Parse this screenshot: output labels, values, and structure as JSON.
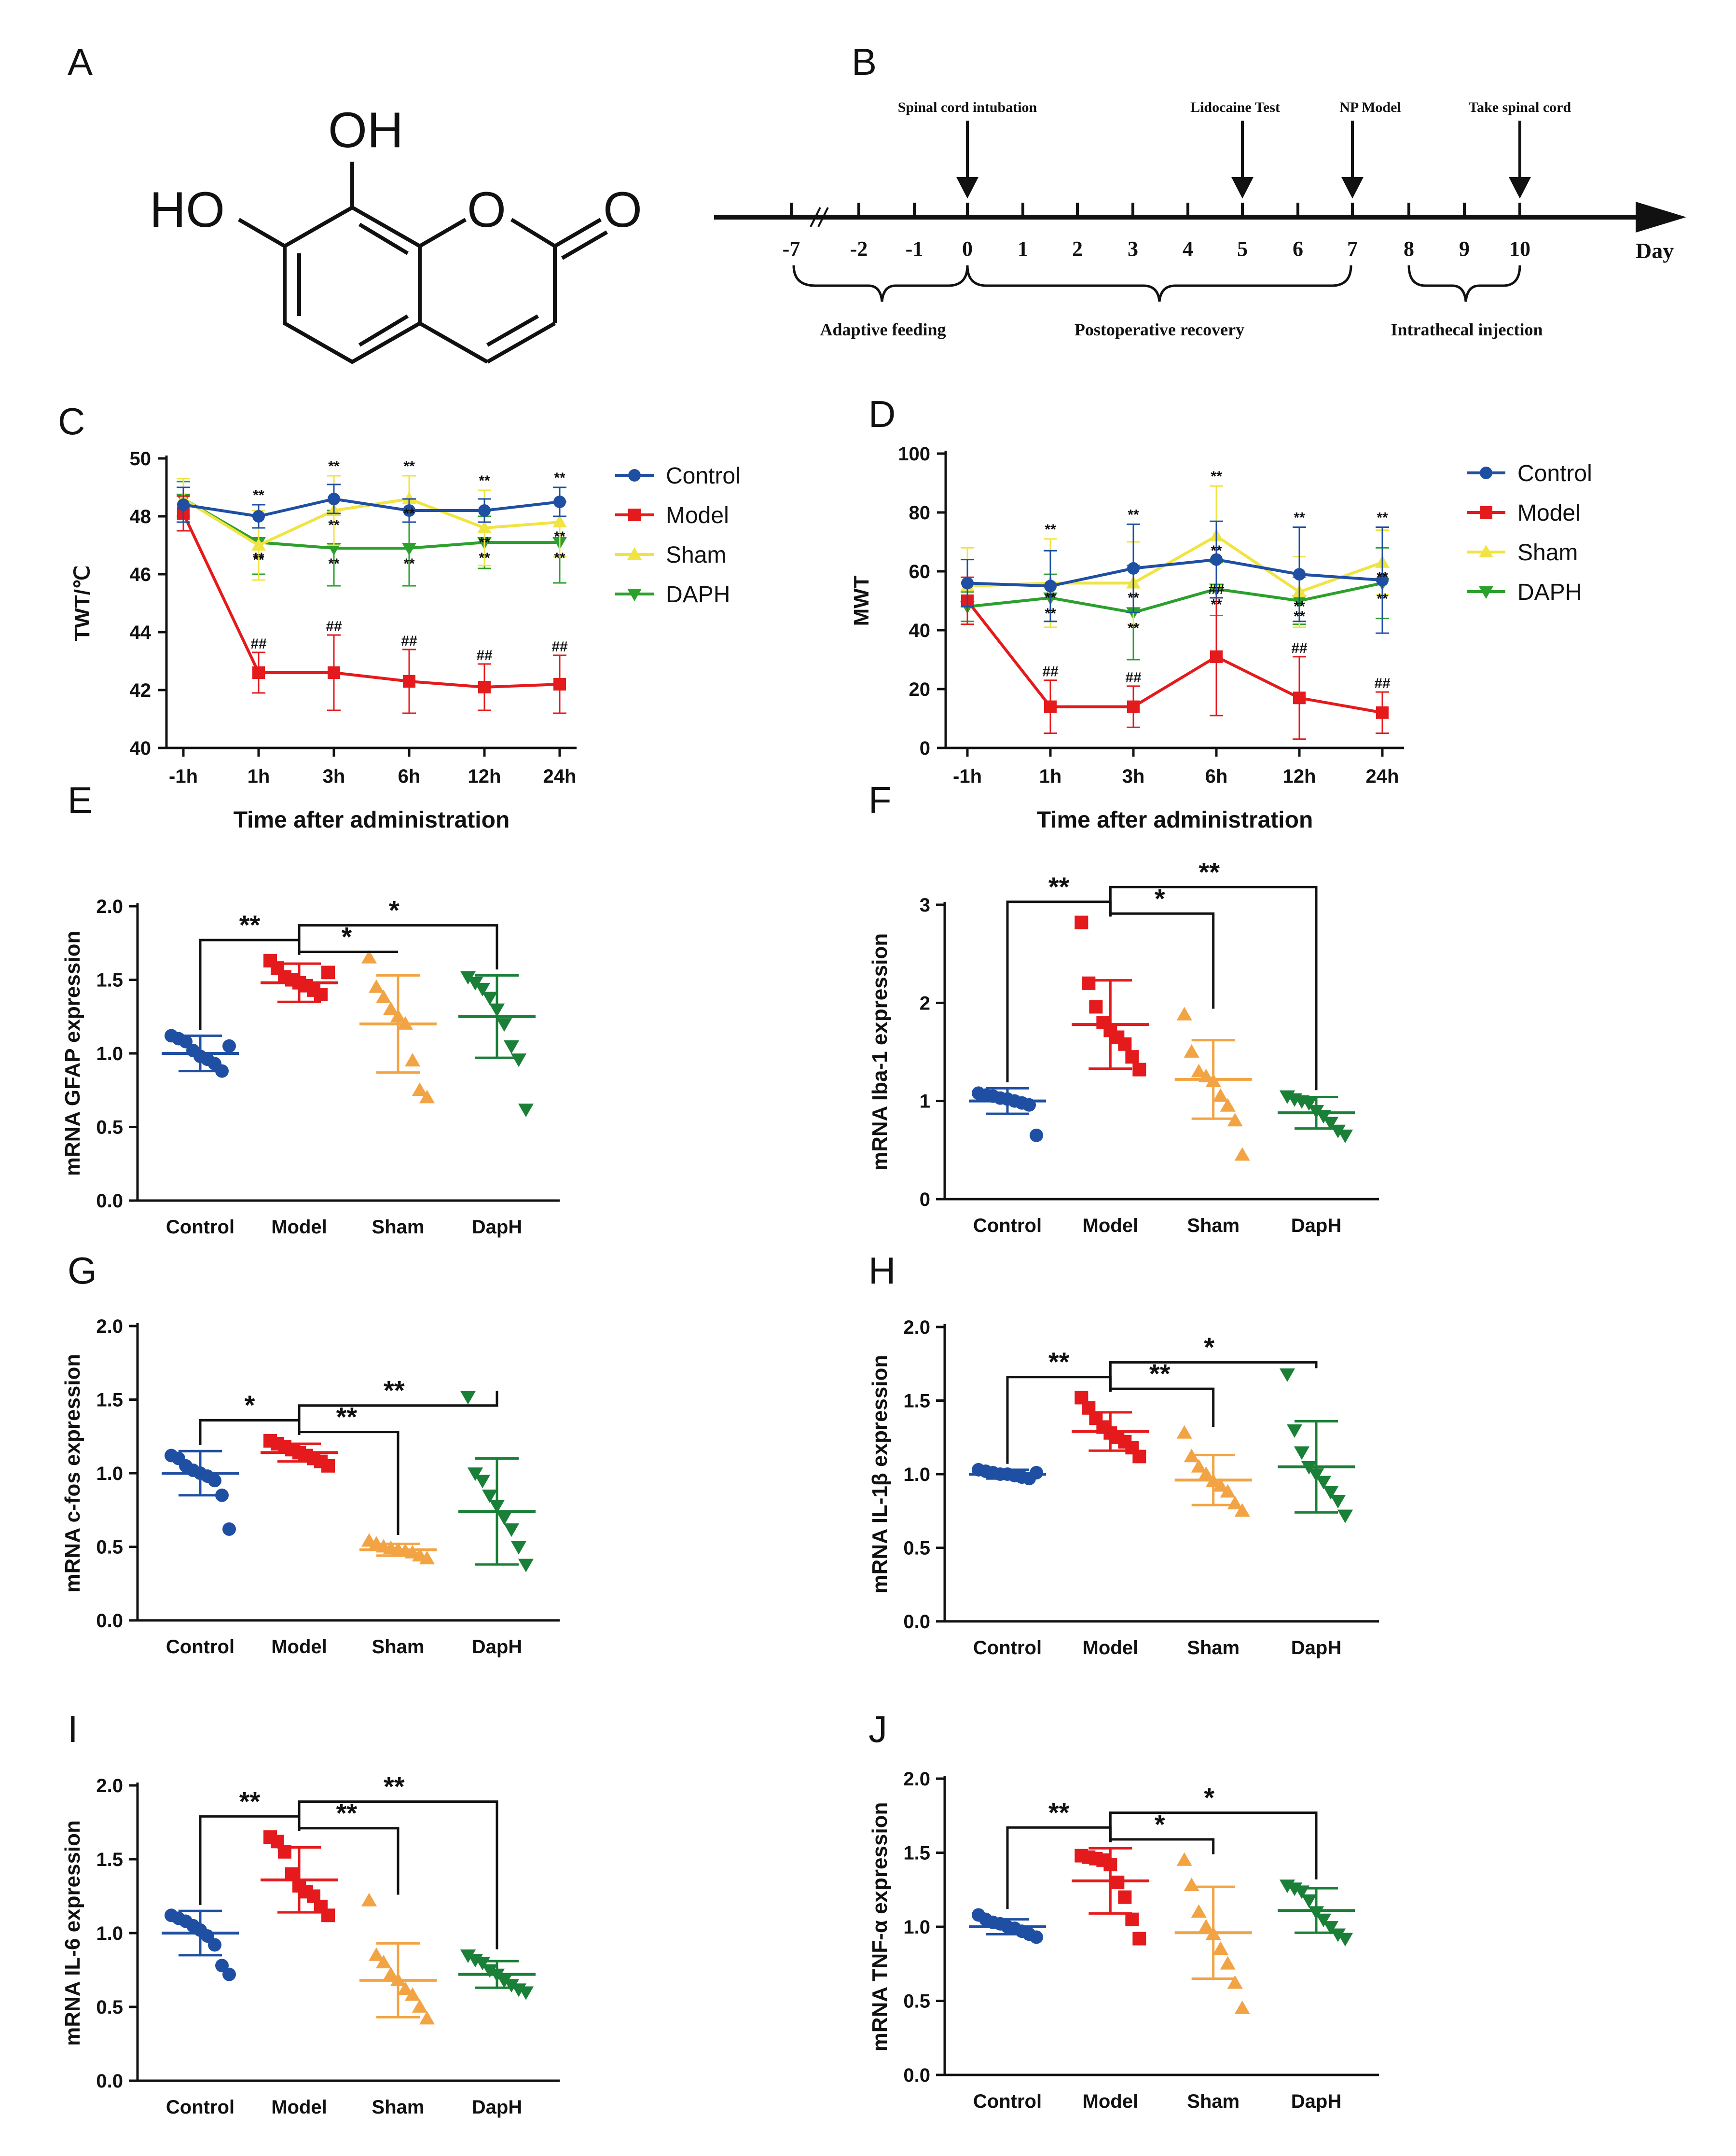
{
  "panel_letters": [
    "A",
    "B",
    "C",
    "D",
    "E",
    "F",
    "G",
    "H",
    "I",
    "J"
  ],
  "colors": {
    "Control": "#1f4fa3",
    "Model": "#e41a1c",
    "Sham": "#f2a444",
    "DAPH": "#1a7f37",
    "ShamLine": "#f0e442",
    "DaphLine": "#2ca02c"
  },
  "molecule": {
    "labels": [
      "OH",
      "HO",
      "O",
      "O"
    ]
  },
  "timeline": {
    "axis_label": "Day",
    "ticks": [
      "-7",
      "-2",
      "-1",
      "0",
      "1",
      "2",
      "3",
      "4",
      "5",
      "6",
      "7",
      "8",
      "9",
      "10"
    ],
    "events": [
      "Spinal cord intubation",
      "Lidocaine Test",
      "NP Model",
      "Take spinal cord"
    ],
    "periods": [
      "Adaptive feeding",
      "Postoperative recovery",
      "Intrathecal injection"
    ]
  },
  "chart_data": [
    {
      "id": "C",
      "type": "line",
      "ylabel": "TWT/℃",
      "xlabel": "Time after administration",
      "categories": [
        "-1h",
        "1h",
        "3h",
        "6h",
        "12h",
        "24h"
      ],
      "ylim": [
        40,
        50
      ],
      "yticks": [
        "40",
        "42",
        "44",
        "46",
        "48",
        "50"
      ],
      "series": [
        {
          "name": "Control",
          "values": [
            48.4,
            48.0,
            48.6,
            48.2,
            48.2,
            48.5
          ],
          "err": [
            0.6,
            0.4,
            0.5,
            0.4,
            0.4,
            0.5
          ]
        },
        {
          "name": "Model",
          "values": [
            48.1,
            42.6,
            42.6,
            42.3,
            42.1,
            42.2
          ],
          "err": [
            0.6,
            0.7,
            1.3,
            1.1,
            0.8,
            1.0
          ]
        },
        {
          "name": "Sham",
          "values": [
            48.6,
            47.0,
            48.2,
            48.6,
            47.6,
            47.8
          ],
          "err": [
            0.7,
            1.2,
            1.2,
            0.8,
            1.3,
            1.2
          ]
        },
        {
          "name": "DAPH",
          "values": [
            48.6,
            47.1,
            46.9,
            46.9,
            47.1,
            47.1
          ],
          "err": [
            0.6,
            1.1,
            1.3,
            1.3,
            0.9,
            1.4
          ]
        }
      ],
      "annotations": {
        "top": [
          "**",
          "**",
          "**",
          "**",
          "**"
        ],
        "mid": [
          "**",
          "**",
          "**",
          "**",
          "**"
        ],
        "low": [
          "**",
          "**",
          "**",
          "**",
          "**"
        ],
        "model": [
          "##",
          "##",
          "##",
          "##",
          "##"
        ]
      }
    },
    {
      "id": "D",
      "type": "line",
      "ylabel": "MWT",
      "xlabel": "Time after administration",
      "categories": [
        "-1h",
        "1h",
        "3h",
        "6h",
        "12h",
        "24h"
      ],
      "ylim": [
        0,
        100
      ],
      "yticks": [
        "0",
        "20",
        "40",
        "60",
        "80",
        "100"
      ],
      "series": [
        {
          "name": "Control",
          "values": [
            56,
            55,
            61,
            64,
            59,
            57
          ],
          "err": [
            8,
            12,
            15,
            13,
            16,
            18
          ]
        },
        {
          "name": "Model",
          "values": [
            50,
            14,
            14,
            31,
            17,
            12
          ],
          "err": [
            8,
            9,
            7,
            20,
            14,
            7
          ]
        },
        {
          "name": "Sham",
          "values": [
            55,
            56,
            56,
            72,
            53,
            63
          ],
          "err": [
            13,
            15,
            14,
            17,
            12,
            11
          ]
        },
        {
          "name": "DAPH",
          "values": [
            48,
            51,
            46,
            54,
            50,
            56
          ],
          "err": [
            5,
            8,
            16,
            9,
            8,
            12
          ]
        }
      ],
      "annotations": {
        "top": [
          "**",
          "**",
          "**",
          "**",
          "**"
        ],
        "mid": [
          "**",
          "**",
          "**",
          "**",
          "**"
        ],
        "low": [
          "**",
          "**",
          "**",
          "**",
          "**"
        ],
        "model": [
          "##",
          "##",
          "##",
          "##",
          "##"
        ]
      }
    },
    {
      "id": "E",
      "type": "scatter",
      "ylabel": "mRNA GFAP expression",
      "categories": [
        "Control",
        "Model",
        "Sham",
        "DapH"
      ],
      "ylim": [
        0,
        2.0
      ],
      "yticks": [
        "0.0",
        "0.5",
        "1.0",
        "1.5",
        "2.0"
      ],
      "groups": [
        {
          "values": [
            1.12,
            1.1,
            1.08,
            1.02,
            0.98,
            0.96,
            0.93,
            0.88,
            1.05
          ],
          "mean": 1.0,
          "sd": 0.12
        },
        {
          "values": [
            1.63,
            1.58,
            1.52,
            1.5,
            1.48,
            1.46,
            1.43,
            1.4,
            1.55
          ],
          "mean": 1.48,
          "sd": 0.13
        },
        {
          "values": [
            1.65,
            1.45,
            1.38,
            1.3,
            1.25,
            1.2,
            0.95,
            0.75,
            0.7
          ],
          "mean": 1.2,
          "sd": 0.33
        },
        {
          "values": [
            1.52,
            1.48,
            1.44,
            1.38,
            1.3,
            1.2,
            1.05,
            0.96,
            0.62
          ],
          "mean": 1.25,
          "sd": 0.28
        }
      ],
      "brackets": [
        {
          "from": 0,
          "to": 1,
          "label": "**"
        },
        {
          "from": 1,
          "to": 2,
          "label": "*"
        },
        {
          "from": 1,
          "to": 3,
          "label": "*"
        }
      ]
    },
    {
      "id": "F",
      "type": "scatter",
      "ylabel": "mRNA Iba-1 expression",
      "categories": [
        "Control",
        "Model",
        "Sham",
        "DapH"
      ],
      "ylim": [
        0,
        3
      ],
      "yticks": [
        "0",
        "1",
        "2",
        "3"
      ],
      "groups": [
        {
          "values": [
            1.08,
            1.06,
            1.05,
            1.03,
            1.02,
            1.0,
            0.98,
            0.96,
            0.65
          ],
          "mean": 1.0,
          "sd": 0.13
        },
        {
          "values": [
            2.82,
            2.2,
            1.96,
            1.8,
            1.72,
            1.65,
            1.58,
            1.45,
            1.32
          ],
          "mean": 1.78,
          "sd": 0.45
        },
        {
          "values": [
            1.88,
            1.5,
            1.3,
            1.25,
            1.2,
            1.05,
            0.95,
            0.8,
            0.45
          ],
          "mean": 1.22,
          "sd": 0.4
        },
        {
          "values": [
            1.05,
            1.02,
            1.0,
            0.98,
            0.9,
            0.85,
            0.78,
            0.7,
            0.65
          ],
          "mean": 0.88,
          "sd": 0.16
        }
      ],
      "brackets": [
        {
          "from": 0,
          "to": 1,
          "label": "**"
        },
        {
          "from": 1,
          "to": 2,
          "label": "*"
        },
        {
          "from": 1,
          "to": 3,
          "label": "**"
        }
      ]
    },
    {
      "id": "G",
      "type": "scatter",
      "ylabel": "mRNA c-fos expression",
      "categories": [
        "Control",
        "Model",
        "Sham",
        "DapH"
      ],
      "ylim": [
        0,
        2.0
      ],
      "yticks": [
        "0.0",
        "0.5",
        "1.0",
        "1.5",
        "2.0"
      ],
      "groups": [
        {
          "values": [
            1.12,
            1.1,
            1.05,
            1.02,
            1.0,
            0.98,
            0.95,
            0.85,
            0.62
          ],
          "mean": 1.0,
          "sd": 0.15
        },
        {
          "values": [
            1.22,
            1.2,
            1.18,
            1.16,
            1.14,
            1.12,
            1.1,
            1.08,
            1.05
          ],
          "mean": 1.14,
          "sd": 0.06
        },
        {
          "values": [
            0.54,
            0.52,
            0.5,
            0.49,
            0.48,
            0.47,
            0.46,
            0.44,
            0.42
          ],
          "mean": 0.48,
          "sd": 0.04
        },
        {
          "values": [
            1.52,
            1.0,
            0.95,
            0.85,
            0.78,
            0.7,
            0.62,
            0.5,
            0.38
          ],
          "mean": 0.74,
          "sd": 0.36
        }
      ],
      "brackets": [
        {
          "from": 0,
          "to": 1,
          "label": "*"
        },
        {
          "from": 1,
          "to": 2,
          "label": "**"
        },
        {
          "from": 1,
          "to": 3,
          "label": "**"
        }
      ]
    },
    {
      "id": "H",
      "type": "scatter",
      "ylabel": "mRNA IL-1β expression",
      "categories": [
        "Control",
        "Model",
        "Sham",
        "DapH"
      ],
      "ylim": [
        0,
        2.0
      ],
      "yticks": [
        "0.0",
        "0.5",
        "1.0",
        "1.5",
        "2.0"
      ],
      "groups": [
        {
          "values": [
            1.03,
            1.02,
            1.01,
            1.0,
            1.0,
            0.99,
            0.98,
            0.97,
            1.01
          ],
          "mean": 1.0,
          "sd": 0.03
        },
        {
          "values": [
            1.52,
            1.45,
            1.38,
            1.32,
            1.28,
            1.25,
            1.22,
            1.18,
            1.12
          ],
          "mean": 1.29,
          "sd": 0.13
        },
        {
          "values": [
            1.28,
            1.12,
            1.05,
            1.0,
            0.95,
            0.92,
            0.88,
            0.8,
            0.75
          ],
          "mean": 0.96,
          "sd": 0.17
        },
        {
          "values": [
            1.68,
            1.3,
            1.15,
            1.05,
            1.0,
            0.95,
            0.88,
            0.82,
            0.72
          ],
          "mean": 1.05,
          "sd": 0.31
        }
      ],
      "brackets": [
        {
          "from": 0,
          "to": 1,
          "label": "**"
        },
        {
          "from": 1,
          "to": 2,
          "label": "**"
        },
        {
          "from": 1,
          "to": 3,
          "label": "*"
        }
      ]
    },
    {
      "id": "I",
      "type": "scatter",
      "ylabel": "mRNA IL-6 expression",
      "categories": [
        "Control",
        "Model",
        "Sham",
        "DapH"
      ],
      "ylim": [
        0,
        2.0
      ],
      "yticks": [
        "0.0",
        "0.5",
        "1.0",
        "1.5",
        "2.0"
      ],
      "groups": [
        {
          "values": [
            1.12,
            1.1,
            1.08,
            1.05,
            1.02,
            0.98,
            0.92,
            0.78,
            0.72
          ],
          "mean": 1.0,
          "sd": 0.15
        },
        {
          "values": [
            1.65,
            1.62,
            1.55,
            1.4,
            1.32,
            1.28,
            1.25,
            1.18,
            1.12
          ],
          "mean": 1.36,
          "sd": 0.22
        },
        {
          "values": [
            1.22,
            0.85,
            0.8,
            0.72,
            0.68,
            0.62,
            0.58,
            0.5,
            0.42
          ],
          "mean": 0.68,
          "sd": 0.25
        },
        {
          "values": [
            0.85,
            0.82,
            0.8,
            0.75,
            0.72,
            0.68,
            0.65,
            0.62,
            0.6
          ],
          "mean": 0.72,
          "sd": 0.09
        }
      ],
      "brackets": [
        {
          "from": 0,
          "to": 1,
          "label": "**"
        },
        {
          "from": 1,
          "to": 2,
          "label": "**"
        },
        {
          "from": 1,
          "to": 3,
          "label": "**"
        }
      ]
    },
    {
      "id": "J",
      "type": "scatter",
      "ylabel": "mRNA TNF-α expression",
      "categories": [
        "Control",
        "Model",
        "Sham",
        "DapH"
      ],
      "ylim": [
        0,
        2.0
      ],
      "yticks": [
        "0.0",
        "0.5",
        "1.0",
        "1.5",
        "2.0"
      ],
      "groups": [
        {
          "values": [
            1.08,
            1.05,
            1.03,
            1.02,
            1.0,
            0.99,
            0.97,
            0.95,
            0.93
          ],
          "mean": 1.0,
          "sd": 0.05
        },
        {
          "values": [
            1.48,
            1.47,
            1.46,
            1.45,
            1.42,
            1.3,
            1.2,
            1.05,
            0.92
          ],
          "mean": 1.31,
          "sd": 0.22
        },
        {
          "values": [
            1.45,
            1.28,
            1.1,
            1.0,
            0.95,
            0.85,
            0.75,
            0.62,
            0.45
          ],
          "mean": 0.96,
          "sd": 0.31
        },
        {
          "values": [
            1.28,
            1.26,
            1.24,
            1.18,
            1.1,
            1.05,
            1.0,
            0.95,
            0.92
          ],
          "mean": 1.11,
          "sd": 0.15
        }
      ],
      "brackets": [
        {
          "from": 0,
          "to": 1,
          "label": "**"
        },
        {
          "from": 1,
          "to": 2,
          "label": "*"
        },
        {
          "from": 1,
          "to": 3,
          "label": "*"
        }
      ]
    }
  ]
}
